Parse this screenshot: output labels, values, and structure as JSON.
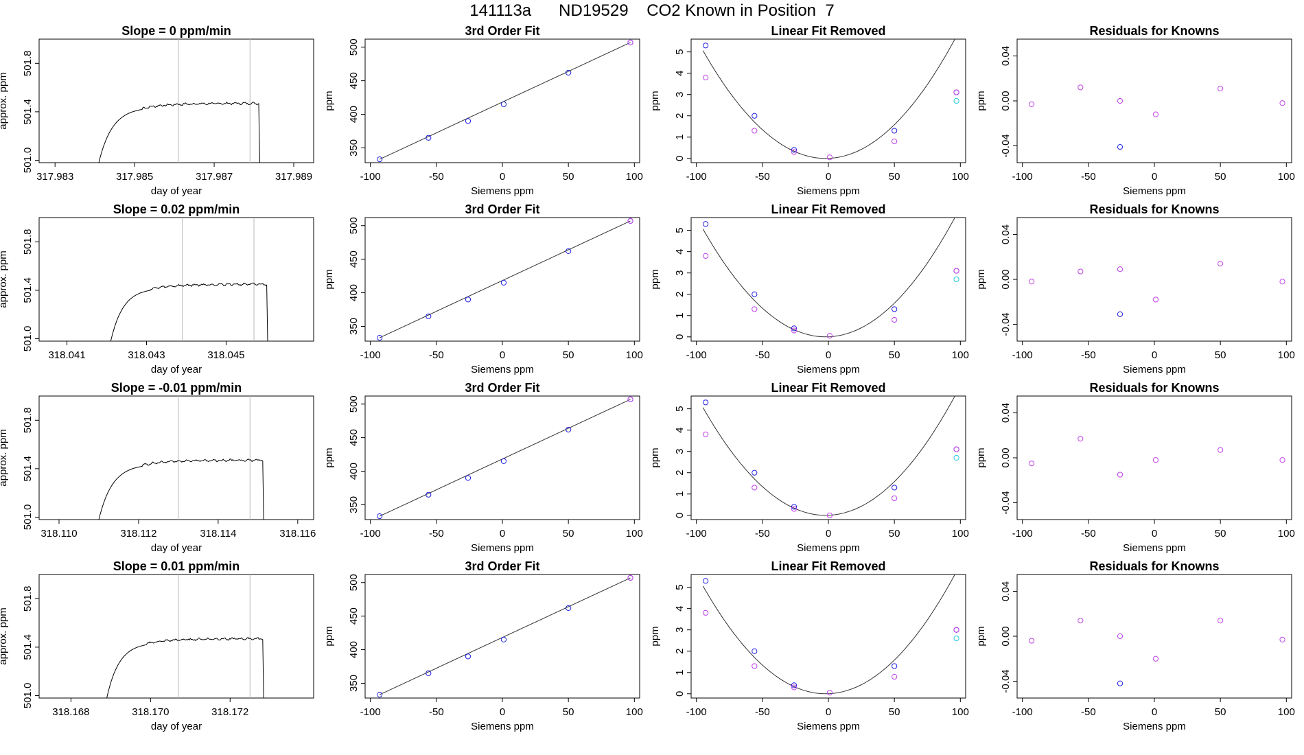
{
  "page_title": "141113a      ND19529    CO2 Known in Position  7",
  "colors": {
    "axis": "#000000",
    "trace": "#000000",
    "vline": "#b8b8b8",
    "blue": "#2020e0",
    "magenta": "#c040e8",
    "cyan": "#20c8e0",
    "fit": "#333333"
  },
  "chart_data": [
    {
      "type": "line",
      "row": 1,
      "panel": "time_series",
      "title": "Slope =  0  ppm/min",
      "xlabel": "day of year",
      "ylabel": "approx. ppm",
      "xlim": [
        317.9826,
        317.9895
      ],
      "ylim": [
        500.98,
        502.0
      ],
      "xticks": [
        "317.983",
        "317.985",
        "317.987",
        "317.989"
      ],
      "yticks": [
        "501.0",
        "501.4",
        "501.8"
      ],
      "vlines": [
        317.9861,
        317.9879
      ],
      "trace": {
        "t_start": 317.9841,
        "t_plateau": 317.9852,
        "t_drop": 317.9881,
        "baseline": 500.98,
        "plateau": 501.47
      }
    },
    {
      "type": "scatter",
      "row": 1,
      "panel": "third_order_fit",
      "title": "3rd Order Fit",
      "xlabel": "Siemens ppm",
      "ylabel": "ppm",
      "xlim": [
        -104,
        104
      ],
      "ylim": [
        328,
        512
      ],
      "xticks": [
        "-100",
        "-50",
        "0",
        "50",
        "100"
      ],
      "yticks": [
        "350",
        "400",
        "450",
        "500"
      ],
      "x": [
        -93,
        -56,
        -26,
        1,
        50,
        97
      ],
      "y": [
        333,
        365,
        390,
        415,
        462,
        507
      ],
      "fit_line": {
        "x": [
          -93,
          97
        ],
        "y": [
          333,
          507
        ]
      }
    },
    {
      "type": "scatter",
      "row": 1,
      "panel": "linear_fit_removed",
      "title": "Linear Fit Removed",
      "xlabel": "Siemens ppm",
      "ylabel": "ppm",
      "xlim": [
        -104,
        104
      ],
      "ylim": [
        -0.2,
        5.6
      ],
      "xticks": [
        "-100",
        "-50",
        "0",
        "50",
        "100"
      ],
      "yticks": [
        "0",
        "1",
        "2",
        "3",
        "4",
        "5"
      ],
      "series": [
        {
          "color": "blue",
          "x": [
            -93,
            -56,
            -26,
            50,
            97
          ],
          "y": [
            5.3,
            2.0,
            0.4,
            1.3,
            3.1
          ]
        },
        {
          "color": "magenta",
          "x": [
            -93,
            -56,
            -26,
            1,
            50,
            97
          ],
          "y": [
            3.8,
            1.3,
            0.3,
            0.05,
            0.8,
            3.1
          ]
        },
        {
          "color": "cyan",
          "x": [
            97
          ],
          "y": [
            2.7
          ]
        }
      ],
      "fit_curve": {
        "vertex_x": -2,
        "a": 0.000585
      }
    },
    {
      "type": "scatter",
      "row": 1,
      "panel": "residuals",
      "title": "Residuals for Knowns",
      "xlabel": "Siemens ppm",
      "ylabel": "ppm",
      "xlim": [
        -104,
        104
      ],
      "ylim": [
        -0.055,
        0.055
      ],
      "xticks": [
        "-100",
        "-50",
        "0",
        "50",
        "100"
      ],
      "yticks": [
        "-0.04",
        "0.00",
        "0.04"
      ],
      "series": [
        {
          "color": "magenta",
          "x": [
            -93,
            -56,
            -26,
            1,
            50,
            97
          ],
          "y": [
            -0.003,
            0.012,
            0.0,
            -0.012,
            0.011,
            -0.002
          ]
        },
        {
          "color": "blue",
          "x": [
            -26
          ],
          "y": [
            -0.041
          ]
        }
      ]
    },
    {
      "type": "line",
      "row": 2,
      "panel": "time_series",
      "title": "Slope =  0.02  ppm/min",
      "xlabel": "day of year",
      "ylabel": "approx. ppm",
      "xlim": [
        318.0403,
        318.0472
      ],
      "ylim": [
        500.98,
        502.0
      ],
      "xticks": [
        "318.041",
        "318.043",
        "318.045"
      ],
      "yticks": [
        "501.0",
        "501.4",
        "501.8"
      ],
      "vlines": [
        318.0439,
        318.0457
      ],
      "trace": {
        "t_start": 318.0421,
        "t_plateau": 318.0431,
        "t_drop": 318.046,
        "baseline": 500.98,
        "plateau": 501.45
      }
    },
    {
      "type": "scatter",
      "row": 2,
      "panel": "third_order_fit",
      "title": "3rd Order Fit",
      "xlabel": "Siemens ppm",
      "ylabel": "ppm",
      "xlim": [
        -104,
        104
      ],
      "ylim": [
        328,
        512
      ],
      "xticks": [
        "-100",
        "-50",
        "0",
        "50",
        "100"
      ],
      "yticks": [
        "350",
        "400",
        "450",
        "500"
      ],
      "x": [
        -93,
        -56,
        -26,
        1,
        50,
        97
      ],
      "y": [
        333,
        365,
        390,
        415,
        462,
        507
      ],
      "fit_line": {
        "x": [
          -93,
          97
        ],
        "y": [
          333,
          507
        ]
      }
    },
    {
      "type": "scatter",
      "row": 2,
      "panel": "linear_fit_removed",
      "title": "Linear Fit Removed",
      "xlabel": "Siemens ppm",
      "ylabel": "ppm",
      "xlim": [
        -104,
        104
      ],
      "ylim": [
        -0.2,
        5.6
      ],
      "xticks": [
        "-100",
        "-50",
        "0",
        "50",
        "100"
      ],
      "yticks": [
        "0",
        "1",
        "2",
        "3",
        "4",
        "5"
      ],
      "series": [
        {
          "color": "blue",
          "x": [
            -93,
            -56,
            -26,
            50,
            97
          ],
          "y": [
            5.3,
            2.0,
            0.4,
            1.3,
            3.1
          ]
        },
        {
          "color": "magenta",
          "x": [
            -93,
            -56,
            -26,
            1,
            50,
            97
          ],
          "y": [
            3.8,
            1.3,
            0.3,
            0.05,
            0.8,
            3.1
          ]
        },
        {
          "color": "cyan",
          "x": [
            97
          ],
          "y": [
            2.7
          ]
        }
      ],
      "fit_curve": {
        "vertex_x": -2,
        "a": 0.000585
      }
    },
    {
      "type": "scatter",
      "row": 2,
      "panel": "residuals",
      "title": "Residuals for Knowns",
      "xlabel": "Siemens ppm",
      "ylabel": "ppm",
      "xlim": [
        -104,
        104
      ],
      "ylim": [
        -0.055,
        0.055
      ],
      "xticks": [
        "-100",
        "-50",
        "0",
        "50",
        "100"
      ],
      "yticks": [
        "-0.04",
        "0.00",
        "0.04"
      ],
      "series": [
        {
          "color": "magenta",
          "x": [
            -93,
            -56,
            -26,
            1,
            50,
            97
          ],
          "y": [
            -0.002,
            0.007,
            0.009,
            -0.018,
            0.014,
            -0.002
          ]
        },
        {
          "color": "blue",
          "x": [
            -26
          ],
          "y": [
            -0.031
          ]
        }
      ]
    },
    {
      "type": "line",
      "row": 3,
      "panel": "time_series",
      "title": "Slope =  -0.01  ppm/min",
      "xlabel": "day of year",
      "ylabel": "approx. ppm",
      "xlim": [
        318.1095,
        318.1164
      ],
      "ylim": [
        500.98,
        502.0
      ],
      "xticks": [
        "318.110",
        "318.112",
        "318.114",
        "318.116"
      ],
      "yticks": [
        "501.0",
        "501.4",
        "501.8"
      ],
      "vlines": [
        318.113,
        318.1148
      ],
      "trace": {
        "t_start": 318.111,
        "t_plateau": 318.1121,
        "t_drop": 318.1151,
        "baseline": 500.98,
        "plateau": 501.47
      }
    },
    {
      "type": "scatter",
      "row": 3,
      "panel": "third_order_fit",
      "title": "3rd Order Fit",
      "xlabel": "Siemens ppm",
      "ylabel": "ppm",
      "xlim": [
        -104,
        104
      ],
      "ylim": [
        328,
        512
      ],
      "xticks": [
        "-100",
        "-50",
        "0",
        "50",
        "100"
      ],
      "yticks": [
        "350",
        "400",
        "450",
        "500"
      ],
      "x": [
        -93,
        -56,
        -26,
        1,
        50,
        97
      ],
      "y": [
        333,
        365,
        390,
        415,
        462,
        507
      ],
      "fit_line": {
        "x": [
          -93,
          97
        ],
        "y": [
          333,
          507
        ]
      }
    },
    {
      "type": "scatter",
      "row": 3,
      "panel": "linear_fit_removed",
      "title": "Linear Fit Removed",
      "xlabel": "Siemens ppm",
      "ylabel": "ppm",
      "xlim": [
        -104,
        104
      ],
      "ylim": [
        -0.2,
        5.6
      ],
      "xticks": [
        "-100",
        "-50",
        "0",
        "50",
        "100"
      ],
      "yticks": [
        "0",
        "1",
        "2",
        "3",
        "4",
        "5"
      ],
      "series": [
        {
          "color": "blue",
          "x": [
            -93,
            -56,
            -26,
            50,
            97
          ],
          "y": [
            5.3,
            2.0,
            0.4,
            1.3,
            3.1
          ]
        },
        {
          "color": "magenta",
          "x": [
            -93,
            -56,
            -26,
            1,
            50,
            97
          ],
          "y": [
            3.8,
            1.3,
            0.3,
            0.0,
            0.8,
            3.1
          ]
        },
        {
          "color": "cyan",
          "x": [
            97
          ],
          "y": [
            2.7
          ]
        }
      ],
      "fit_curve": {
        "vertex_x": -2,
        "a": 0.000585
      }
    },
    {
      "type": "scatter",
      "row": 3,
      "panel": "residuals",
      "title": "Residuals for Knowns",
      "xlabel": "Siemens ppm",
      "ylabel": "ppm",
      "xlim": [
        -104,
        104
      ],
      "ylim": [
        -0.055,
        0.055
      ],
      "xticks": [
        "-100",
        "-50",
        "0",
        "50",
        "100"
      ],
      "yticks": [
        "-0.04",
        "0.00",
        "0.04"
      ],
      "series": [
        {
          "color": "magenta",
          "x": [
            -93,
            -56,
            -26,
            1,
            50,
            97
          ],
          "y": [
            -0.005,
            0.017,
            -0.015,
            -0.002,
            0.007,
            -0.002
          ]
        }
      ]
    },
    {
      "type": "line",
      "row": 4,
      "panel": "time_series",
      "title": "Slope =  0.01  ppm/min",
      "xlabel": "day of year",
      "ylabel": "approx. ppm",
      "xlim": [
        318.1672,
        318.1741
      ],
      "ylim": [
        500.98,
        502.0
      ],
      "xticks": [
        "318.168",
        "318.170",
        "318.172"
      ],
      "yticks": [
        "501.0",
        "501.4",
        "501.8"
      ],
      "vlines": [
        318.1707,
        318.1725
      ],
      "trace": {
        "t_start": 318.1689,
        "t_plateau": 318.1699,
        "t_drop": 318.1728,
        "baseline": 500.98,
        "plateau": 501.47
      }
    },
    {
      "type": "scatter",
      "row": 4,
      "panel": "third_order_fit",
      "title": "3rd Order Fit",
      "xlabel": "Siemens ppm",
      "ylabel": "ppm",
      "xlim": [
        -104,
        104
      ],
      "ylim": [
        328,
        512
      ],
      "xticks": [
        "-100",
        "-50",
        "0",
        "50",
        "100"
      ],
      "yticks": [
        "350",
        "400",
        "450",
        "500"
      ],
      "x": [
        -93,
        -56,
        -26,
        1,
        50,
        97
      ],
      "y": [
        333,
        365,
        390,
        415,
        462,
        507
      ],
      "fit_line": {
        "x": [
          -93,
          97
        ],
        "y": [
          333,
          507
        ]
      }
    },
    {
      "type": "scatter",
      "row": 4,
      "panel": "linear_fit_removed",
      "title": "Linear Fit Removed",
      "xlabel": "Siemens ppm",
      "ylabel": "ppm",
      "xlim": [
        -104,
        104
      ],
      "ylim": [
        -0.2,
        5.6
      ],
      "xticks": [
        "-100",
        "-50",
        "0",
        "50",
        "100"
      ],
      "yticks": [
        "0",
        "1",
        "2",
        "3",
        "4",
        "5"
      ],
      "series": [
        {
          "color": "blue",
          "x": [
            -93,
            -56,
            -26,
            50,
            97
          ],
          "y": [
            5.3,
            2.0,
            0.4,
            1.3,
            3.0
          ]
        },
        {
          "color": "magenta",
          "x": [
            -93,
            -56,
            -26,
            1,
            50,
            97
          ],
          "y": [
            3.8,
            1.3,
            0.3,
            0.05,
            0.8,
            3.0
          ]
        },
        {
          "color": "cyan",
          "x": [
            97
          ],
          "y": [
            2.6
          ]
        }
      ],
      "fit_curve": {
        "vertex_x": -2,
        "a": 0.000585
      }
    },
    {
      "type": "scatter",
      "row": 4,
      "panel": "residuals",
      "title": "Residuals for Knowns",
      "xlabel": "Siemens ppm",
      "ylabel": "ppm",
      "xlim": [
        -104,
        104
      ],
      "ylim": [
        -0.055,
        0.055
      ],
      "xticks": [
        "-100",
        "-50",
        "0",
        "50",
        "100"
      ],
      "yticks": [
        "-0.04",
        "0.00",
        "0.04"
      ],
      "series": [
        {
          "color": "magenta",
          "x": [
            -93,
            -56,
            -26,
            1,
            50,
            97
          ],
          "y": [
            -0.004,
            0.014,
            0.0,
            -0.02,
            0.014,
            -0.003
          ]
        },
        {
          "color": "blue",
          "x": [
            -26
          ],
          "y": [
            -0.042
          ]
        }
      ]
    }
  ]
}
